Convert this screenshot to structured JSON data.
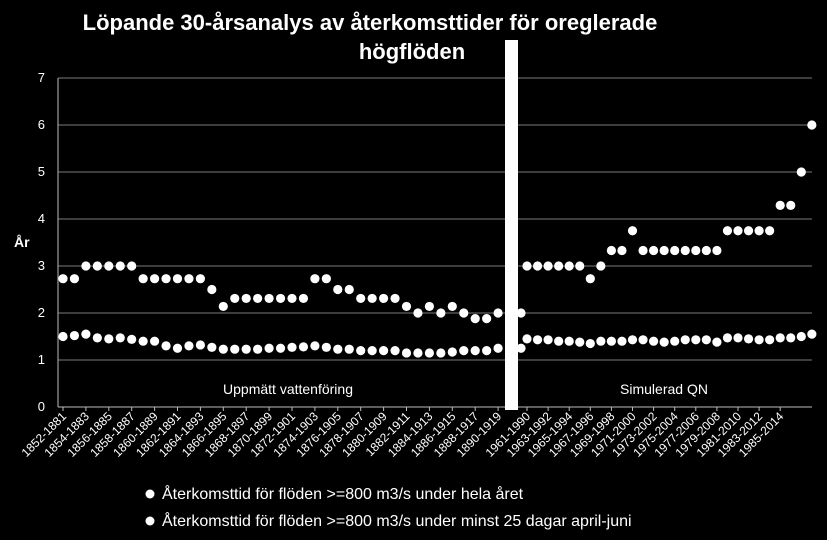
{
  "chart_data": {
    "type": "scatter",
    "title_lines": [
      "Löpande 30-årsanalys av återkomsttider för oreglerade",
      "högflöden"
    ],
    "ylabel": "År",
    "ylim": [
      0,
      7
    ],
    "yticks": [
      "0",
      "1",
      "2",
      "3",
      "4",
      "5",
      "6",
      "7"
    ],
    "break_mark": "//",
    "annotations": [
      {
        "text": "Uppmätt vattenföring",
        "segment": "measured"
      },
      {
        "text": "Simulerad QN",
        "segment": "simulated"
      }
    ],
    "x_labels": {
      "measured": [
        "1852-1881",
        "1854-1883",
        "1856-1885",
        "1858-1887",
        "1860-1889",
        "1862-1891",
        "1864-1893",
        "1866-1895",
        "1868-1897",
        "1870-1899",
        "1872-1901",
        "1874-1903",
        "1876-1905",
        "1878-1907",
        "1880-1909",
        "1882-1911",
        "1884-1913",
        "1886-1915",
        "1888-1917",
        "1890-1919"
      ],
      "simulated": [
        "1961-1990",
        "1963-1992",
        "1965-1994",
        "1967-1996",
        "1969-1998",
        "1971-2000",
        "1973-2002",
        "1975-2004",
        "1977-2006",
        "1979-2008",
        "1981-2010",
        "1983-2012",
        "1985-2014"
      ]
    },
    "series": [
      {
        "name": "Återkomsttid för flöden >=800 m3/s under hela året",
        "measured": [
          2.73,
          2.73,
          3.0,
          3.0,
          3.0,
          3.0,
          3.0,
          2.73,
          2.73,
          2.73,
          2.73,
          2.73,
          2.73,
          2.5,
          2.14,
          2.31,
          2.31,
          2.31,
          2.31,
          2.31,
          2.31,
          2.31,
          2.73,
          2.73,
          2.5,
          2.5,
          2.31,
          2.31,
          2.31,
          2.31,
          2.14,
          2.0,
          2.14,
          2.0,
          2.14,
          2.0,
          1.88,
          1.88,
          2.0,
          2.0,
          2.0
        ],
        "simulated": [
          3.0,
          3.0,
          3.0,
          3.0,
          3.0,
          3.0,
          2.73,
          3.0,
          3.33,
          3.33,
          3.75,
          3.33,
          3.33,
          3.33,
          3.33,
          3.33,
          3.33,
          3.33,
          3.33,
          3.75,
          3.75,
          3.75,
          3.75,
          3.75,
          4.29,
          4.29,
          5.0,
          6.0
        ]
      },
      {
        "name": "Återkomsttid för flöden >=800 m3/s under minst 25 dagar april-juni",
        "measured": [
          1.5,
          1.52,
          1.55,
          1.47,
          1.45,
          1.47,
          1.44,
          1.4,
          1.4,
          1.3,
          1.25,
          1.3,
          1.32,
          1.27,
          1.23,
          1.23,
          1.23,
          1.23,
          1.25,
          1.25,
          1.27,
          1.28,
          1.3,
          1.27,
          1.23,
          1.23,
          1.2,
          1.2,
          1.2,
          1.2,
          1.15,
          1.15,
          1.15,
          1.15,
          1.17,
          1.2,
          1.2,
          1.2,
          1.25,
          1.25,
          1.25
        ],
        "simulated": [
          1.45,
          1.43,
          1.43,
          1.4,
          1.4,
          1.38,
          1.35,
          1.4,
          1.4,
          1.4,
          1.43,
          1.43,
          1.4,
          1.38,
          1.4,
          1.43,
          1.43,
          1.43,
          1.38,
          1.47,
          1.47,
          1.45,
          1.43,
          1.43,
          1.47,
          1.47,
          1.5,
          1.55
        ]
      }
    ]
  }
}
